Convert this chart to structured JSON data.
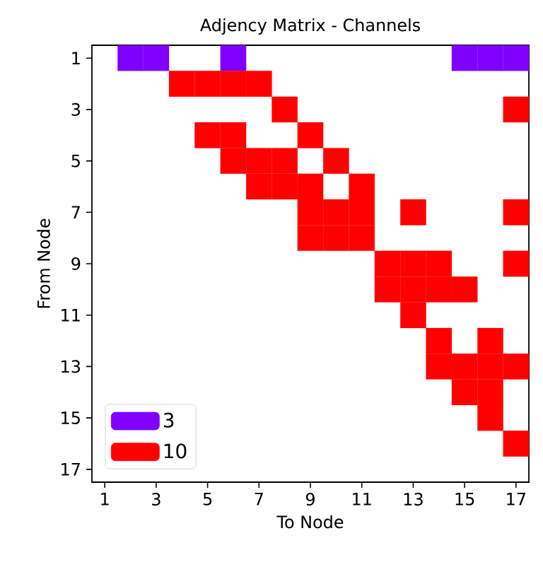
{
  "chart_data": {
    "type": "scatter",
    "title": "Adjency Matrix - Channels",
    "xlabel": "To Node",
    "ylabel": "From Node",
    "xlim": [
      0.5,
      17.5
    ],
    "xticks": [
      1,
      3,
      5,
      7,
      9,
      11,
      13,
      15,
      17
    ],
    "ylim": [
      17.5,
      0.5
    ],
    "yticks": [
      1,
      3,
      5,
      7,
      9,
      11,
      13,
      15,
      17
    ],
    "marker": "square",
    "legend": "bottom left",
    "series": [
      {
        "name": "3",
        "color": "#8000ff",
        "x": [
          2,
          3,
          6,
          15,
          16,
          17
        ],
        "values": [
          1,
          1,
          1,
          1,
          1,
          1
        ]
      },
      {
        "name": "10",
        "color": "#ff0000",
        "x": [
          4,
          5,
          6,
          7,
          8,
          17,
          5,
          6,
          9,
          6,
          7,
          8,
          10,
          7,
          8,
          9,
          11,
          9,
          10,
          11,
          13,
          17,
          9,
          10,
          11,
          12,
          13,
          14,
          17,
          12,
          13,
          14,
          15,
          13,
          14,
          16,
          14,
          15,
          16,
          17,
          15,
          16,
          16,
          17
        ],
        "values": [
          2,
          2,
          2,
          2,
          3,
          3,
          4,
          4,
          4,
          5,
          5,
          5,
          5,
          6,
          6,
          6,
          6,
          7,
          7,
          7,
          7,
          7,
          8,
          8,
          8,
          9,
          9,
          9,
          9,
          10,
          10,
          10,
          10,
          11,
          12,
          12,
          13,
          13,
          13,
          13,
          14,
          14,
          15,
          16
        ]
      }
    ]
  }
}
